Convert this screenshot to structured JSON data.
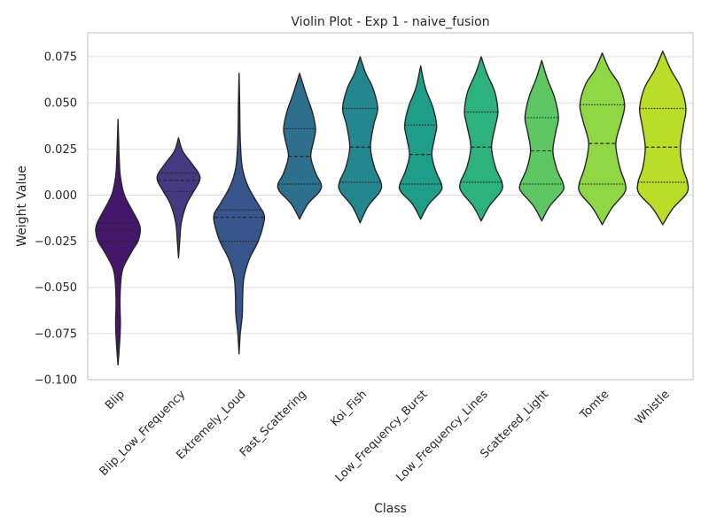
{
  "chart_data": {
    "type": "violin",
    "title": "Violin Plot - Exp 1 - naive_fusion",
    "xlabel": "Class",
    "ylabel": "Weight Value",
    "ylim": [
      -0.1,
      0.088
    ],
    "yticks": [
      -0.1,
      -0.075,
      -0.05,
      -0.025,
      0.0,
      0.025,
      0.05,
      0.075
    ],
    "ytick_labels": [
      "−0.100",
      "−0.075",
      "−0.050",
      "−0.025",
      "0.000",
      "0.025",
      "0.050",
      "0.075"
    ],
    "grid": true,
    "categories": [
      "Blip",
      "Blip_Low_Frequency",
      "Extremely_Loud",
      "Fast_Scattering",
      "Koi_Fish",
      "Low_Frequency_Burst",
      "Low_Frequency_Lines",
      "Scattered_Light",
      "Tomte",
      "Whistle"
    ],
    "colors": [
      "#45176a",
      "#453981",
      "#38568b",
      "#2e6f8e",
      "#24868e",
      "#1e9d89",
      "#2db27d",
      "#5dc863",
      "#8fd744",
      "#bade27"
    ],
    "violins": [
      {
        "min": -0.092,
        "max": 0.041,
        "quartiles": [
          -0.025,
          -0.019,
          -0.015
        ],
        "profile": [
          [
            -0.092,
            0.0
          ],
          [
            -0.08,
            0.04
          ],
          [
            -0.07,
            0.06
          ],
          [
            -0.06,
            0.05
          ],
          [
            -0.05,
            0.06
          ],
          [
            -0.04,
            0.12
          ],
          [
            -0.03,
            0.36
          ],
          [
            -0.025,
            0.5
          ],
          [
            -0.019,
            0.56
          ],
          [
            -0.015,
            0.52
          ],
          [
            -0.01,
            0.4
          ],
          [
            0.0,
            0.16
          ],
          [
            0.01,
            0.06
          ],
          [
            0.02,
            0.03
          ],
          [
            0.03,
            0.015
          ],
          [
            0.041,
            0.0
          ]
        ]
      },
      {
        "min": -0.034,
        "max": 0.031,
        "quartiles": [
          0.002,
          0.008,
          0.012
        ],
        "profile": [
          [
            -0.034,
            0.0
          ],
          [
            -0.025,
            0.03
          ],
          [
            -0.015,
            0.07
          ],
          [
            -0.005,
            0.2
          ],
          [
            0.002,
            0.38
          ],
          [
            0.008,
            0.53
          ],
          [
            0.012,
            0.5
          ],
          [
            0.018,
            0.3
          ],
          [
            0.024,
            0.1
          ],
          [
            0.031,
            0.0
          ]
        ]
      },
      {
        "min": -0.086,
        "max": 0.066,
        "quartiles": [
          -0.025,
          -0.012,
          -0.008
        ],
        "profile": [
          [
            -0.086,
            0.0
          ],
          [
            -0.075,
            0.03
          ],
          [
            -0.065,
            0.08
          ],
          [
            -0.055,
            0.09
          ],
          [
            -0.045,
            0.12
          ],
          [
            -0.035,
            0.25
          ],
          [
            -0.025,
            0.48
          ],
          [
            -0.015,
            0.62
          ],
          [
            -0.01,
            0.62
          ],
          [
            -0.005,
            0.48
          ],
          [
            0.005,
            0.22
          ],
          [
            0.015,
            0.08
          ],
          [
            0.03,
            0.03
          ],
          [
            0.05,
            0.015
          ],
          [
            0.066,
            0.0
          ]
        ]
      },
      {
        "min": -0.013,
        "max": 0.066,
        "quartiles": [
          0.006,
          0.021,
          0.036
        ],
        "profile": [
          [
            -0.013,
            0.0
          ],
          [
            -0.005,
            0.2
          ],
          [
            0.002,
            0.5
          ],
          [
            0.006,
            0.54
          ],
          [
            0.012,
            0.4
          ],
          [
            0.021,
            0.28
          ],
          [
            0.03,
            0.36
          ],
          [
            0.036,
            0.4
          ],
          [
            0.045,
            0.32
          ],
          [
            0.055,
            0.16
          ],
          [
            0.066,
            0.0
          ]
        ]
      },
      {
        "min": -0.015,
        "max": 0.075,
        "quartiles": [
          0.007,
          0.026,
          0.047
        ],
        "profile": [
          [
            -0.015,
            0.0
          ],
          [
            -0.006,
            0.2
          ],
          [
            0.002,
            0.5
          ],
          [
            0.007,
            0.52
          ],
          [
            0.015,
            0.36
          ],
          [
            0.026,
            0.26
          ],
          [
            0.038,
            0.34
          ],
          [
            0.047,
            0.44
          ],
          [
            0.058,
            0.32
          ],
          [
            0.066,
            0.14
          ],
          [
            0.075,
            0.0
          ]
        ]
      },
      {
        "min": -0.013,
        "max": 0.07,
        "quartiles": [
          0.006,
          0.022,
          0.038
        ],
        "profile": [
          [
            -0.013,
            0.0
          ],
          [
            -0.005,
            0.2
          ],
          [
            0.002,
            0.5
          ],
          [
            0.006,
            0.52
          ],
          [
            0.013,
            0.38
          ],
          [
            0.022,
            0.28
          ],
          [
            0.032,
            0.36
          ],
          [
            0.038,
            0.4
          ],
          [
            0.048,
            0.3
          ],
          [
            0.058,
            0.12
          ],
          [
            0.07,
            0.0
          ]
        ]
      },
      {
        "min": -0.014,
        "max": 0.075,
        "quartiles": [
          0.007,
          0.026,
          0.045
        ],
        "profile": [
          [
            -0.014,
            0.0
          ],
          [
            -0.006,
            0.2
          ],
          [
            0.002,
            0.5
          ],
          [
            0.007,
            0.52
          ],
          [
            0.015,
            0.36
          ],
          [
            0.026,
            0.26
          ],
          [
            0.038,
            0.36
          ],
          [
            0.045,
            0.42
          ],
          [
            0.056,
            0.34
          ],
          [
            0.066,
            0.14
          ],
          [
            0.075,
            0.0
          ]
        ]
      },
      {
        "min": -0.014,
        "max": 0.073,
        "quartiles": [
          0.006,
          0.024,
          0.042
        ],
        "profile": [
          [
            -0.014,
            0.0
          ],
          [
            -0.006,
            0.2
          ],
          [
            0.002,
            0.52
          ],
          [
            0.006,
            0.54
          ],
          [
            0.014,
            0.38
          ],
          [
            0.024,
            0.28
          ],
          [
            0.035,
            0.36
          ],
          [
            0.042,
            0.42
          ],
          [
            0.053,
            0.32
          ],
          [
            0.063,
            0.14
          ],
          [
            0.073,
            0.0
          ]
        ]
      },
      {
        "min": -0.016,
        "max": 0.077,
        "quartiles": [
          0.006,
          0.028,
          0.049
        ],
        "profile": [
          [
            -0.016,
            0.0
          ],
          [
            -0.007,
            0.24
          ],
          [
            0.001,
            0.55
          ],
          [
            0.006,
            0.58
          ],
          [
            0.015,
            0.44
          ],
          [
            0.028,
            0.34
          ],
          [
            0.04,
            0.48
          ],
          [
            0.049,
            0.56
          ],
          [
            0.06,
            0.42
          ],
          [
            0.068,
            0.18
          ],
          [
            0.077,
            0.0
          ]
        ]
      },
      {
        "min": -0.016,
        "max": 0.078,
        "quartiles": [
          0.007,
          0.026,
          0.047
        ],
        "profile": [
          [
            -0.016,
            0.0
          ],
          [
            -0.007,
            0.26
          ],
          [
            0.001,
            0.6
          ],
          [
            0.007,
            0.62
          ],
          [
            0.015,
            0.5
          ],
          [
            0.026,
            0.44
          ],
          [
            0.038,
            0.52
          ],
          [
            0.047,
            0.58
          ],
          [
            0.058,
            0.46
          ],
          [
            0.068,
            0.2
          ],
          [
            0.078,
            0.0
          ]
        ]
      }
    ]
  }
}
